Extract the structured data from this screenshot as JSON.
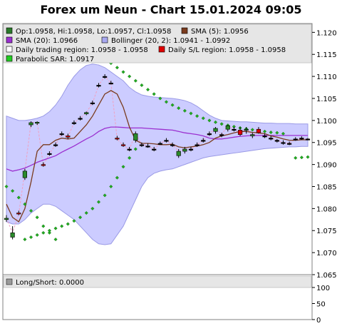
{
  "chart_data": {
    "type": "candlestick",
    "title": "Forex um Neun - Chart 15.01.2024 09:05",
    "ylim": [
      1.065,
      1.122
    ],
    "yticks": [
      "1.120",
      "1.115",
      "1.110",
      "1.105",
      "1.100",
      "1.095",
      "1.090",
      "1.085",
      "1.080",
      "1.075",
      "1.070",
      "1.065"
    ],
    "legend": [
      {
        "label": "Op:1.0958, Hi:1.0958, Lo:1.0957, Cl:1.0958",
        "color": "#2a7a2a"
      },
      {
        "label": "SMA (5): 1.0956",
        "color": "#7a3b1e"
      },
      {
        "label": "SMA (20): 1.0966",
        "color": "#9b30d0"
      },
      {
        "label": "Bollinger (20, 2): 1.0941 - 1.0992",
        "color": "#a8a8f0"
      },
      {
        "label": "Daily trading region: 1.0958 - 1.0958",
        "color": "#ffffff"
      },
      {
        "label": "Daily S/L region: 1.0958 - 1.0958",
        "color": "#e00000"
      },
      {
        "label": "Parabolic SAR: 1.0917",
        "color": "#22cc22"
      }
    ],
    "candles": [
      {
        "o": 1.0775,
        "h": 1.0785,
        "l": 1.077,
        "c": 1.0778
      },
      {
        "o": 1.0735,
        "h": 1.076,
        "l": 1.073,
        "c": 1.0745
      },
      {
        "o": 1.079,
        "h": 1.0795,
        "l": 1.0785,
        "c": 1.0788
      },
      {
        "o": 1.087,
        "h": 1.089,
        "l": 1.0865,
        "c": 1.0885
      },
      {
        "o": 1.099,
        "h": 1.0998,
        "l": 1.0985,
        "c": 1.0995
      },
      {
        "o": 1.0995,
        "h": 1.0998,
        "l": 1.099,
        "c": 1.0996
      },
      {
        "o": 1.09,
        "h": 1.0905,
        "l": 1.0895,
        "c": 1.0898
      },
      {
        "o": 1.0925,
        "h": 1.093,
        "l": 1.092,
        "c": 1.0925
      },
      {
        "o": 1.0945,
        "h": 1.095,
        "l": 1.094,
        "c": 1.0945
      },
      {
        "o": 1.097,
        "h": 1.0975,
        "l": 1.0965,
        "c": 1.097
      },
      {
        "o": 1.0965,
        "h": 1.097,
        "l": 1.0958,
        "c": 1.0962
      },
      {
        "o": 1.0995,
        "h": 1.1,
        "l": 1.099,
        "c": 1.0995
      },
      {
        "o": 1.1005,
        "h": 1.101,
        "l": 1.1,
        "c": 1.1005
      },
      {
        "o": 1.1015,
        "h": 1.102,
        "l": 1.1012,
        "c": 1.1018
      },
      {
        "o": 1.104,
        "h": 1.1045,
        "l": 1.1035,
        "c": 1.104
      },
      {
        "o": 1.108,
        "h": 1.1085,
        "l": 1.1075,
        "c": 1.108
      },
      {
        "o": 1.11,
        "h": 1.1105,
        "l": 1.1095,
        "c": 1.11
      },
      {
        "o": 1.1085,
        "h": 1.109,
        "l": 1.1082,
        "c": 1.1085
      },
      {
        "o": 1.096,
        "h": 1.0965,
        "l": 1.0955,
        "c": 1.0958
      },
      {
        "o": 1.0945,
        "h": 1.095,
        "l": 1.094,
        "c": 1.0943
      },
      {
        "o": 1.0935,
        "h": 1.094,
        "l": 1.093,
        "c": 1.0935
      },
      {
        "o": 1.0955,
        "h": 1.0975,
        "l": 1.095,
        "c": 1.097
      },
      {
        "o": 1.0945,
        "h": 1.095,
        "l": 1.094,
        "c": 1.0945
      },
      {
        "o": 1.0942,
        "h": 1.0948,
        "l": 1.0938,
        "c": 1.0942
      },
      {
        "o": 1.0935,
        "h": 1.094,
        "l": 1.093,
        "c": 1.0935
      },
      {
        "o": 1.0948,
        "h": 1.0952,
        "l": 1.0945,
        "c": 1.0948
      },
      {
        "o": 1.0955,
        "h": 1.096,
        "l": 1.095,
        "c": 1.0955
      },
      {
        "o": 1.0945,
        "h": 1.095,
        "l": 1.094,
        "c": 1.0945
      },
      {
        "o": 1.092,
        "h": 1.0935,
        "l": 1.0915,
        "c": 1.093
      },
      {
        "o": 1.093,
        "h": 1.094,
        "l": 1.0925,
        "c": 1.0935
      },
      {
        "o": 1.0935,
        "h": 1.094,
        "l": 1.093,
        "c": 1.0935
      },
      {
        "o": 1.0945,
        "h": 1.095,
        "l": 1.094,
        "c": 1.0945
      },
      {
        "o": 1.0955,
        "h": 1.096,
        "l": 1.095,
        "c": 1.0955
      },
      {
        "o": 1.097,
        "h": 1.0975,
        "l": 1.0965,
        "c": 1.097
      },
      {
        "o": 1.0975,
        "h": 1.0985,
        "l": 1.097,
        "c": 1.0982
      },
      {
        "o": 1.0968,
        "h": 1.0972,
        "l": 1.0962,
        "c": 1.0968
      },
      {
        "o": 1.098,
        "h": 1.099,
        "l": 1.0975,
        "c": 1.0988
      },
      {
        "o": 1.098,
        "h": 1.0985,
        "l": 1.0975,
        "c": 1.098
      },
      {
        "o": 1.0978,
        "h": 1.0985,
        "l": 1.0965,
        "c": 1.0968
      },
      {
        "o": 1.0978,
        "h": 1.0985,
        "l": 1.097,
        "c": 1.098
      },
      {
        "o": 1.0965,
        "h": 1.0972,
        "l": 1.096,
        "c": 1.0968
      },
      {
        "o": 1.098,
        "h": 1.0985,
        "l": 1.097,
        "c": 1.0972
      },
      {
        "o": 1.0965,
        "h": 1.097,
        "l": 1.096,
        "c": 1.0965
      },
      {
        "o": 1.096,
        "h": 1.0965,
        "l": 1.0955,
        "c": 1.096
      },
      {
        "o": 1.0955,
        "h": 1.0958,
        "l": 1.095,
        "c": 1.0955
      },
      {
        "o": 1.095,
        "h": 1.0955,
        "l": 1.0945,
        "c": 1.095
      },
      {
        "o": 1.0948,
        "h": 1.0952,
        "l": 1.0944,
        "c": 1.0948
      },
      {
        "o": 1.0958,
        "h": 1.0962,
        "l": 1.0954,
        "c": 1.0958
      },
      {
        "o": 1.096,
        "h": 1.0964,
        "l": 1.0956,
        "c": 1.096
      },
      {
        "o": 1.0958,
        "h": 1.096,
        "l": 1.0955,
        "c": 1.0958
      }
    ],
    "sma5": [
      1.081,
      1.078,
      1.077,
      1.08,
      1.086,
      1.093,
      1.0945,
      1.0945,
      1.0955,
      1.096,
      1.0958,
      1.096,
      1.0975,
      1.099,
      1.101,
      1.1035,
      1.106,
      1.1068,
      1.106,
      1.103,
      1.0985,
      1.0955,
      1.0948,
      1.0948,
      1.0947,
      1.0945,
      1.0945,
      1.0946,
      1.094,
      1.0938,
      1.094,
      1.0942,
      1.0945,
      1.095,
      1.096,
      1.0965,
      1.0968,
      1.0972,
      1.0975,
      1.0975,
      1.0973,
      1.0972,
      1.097,
      1.0965,
      1.0962,
      1.0958,
      1.0955,
      1.0955,
      1.0956,
      1.0956
    ],
    "sma20": [
      1.089,
      1.0885,
      1.0888,
      1.0892,
      1.0898,
      1.0905,
      1.091,
      1.0915,
      1.092,
      1.0928,
      1.0935,
      1.0942,
      1.095,
      1.0958,
      1.0965,
      1.0975,
      1.0982,
      1.0985,
      1.0985,
      1.0984,
      1.0983,
      1.0983,
      1.0983,
      1.0982,
      1.0981,
      1.098,
      1.0979,
      1.0978,
      1.0975,
      1.0972,
      1.097,
      1.0968,
      1.0965,
      1.096,
      1.0958,
      1.0958,
      1.096,
      1.0962,
      1.0964,
      1.0965,
      1.0966,
      1.0966,
      1.0966,
      1.0966,
      1.0966,
      1.0966,
      1.0966,
      1.0966,
      1.0966,
      1.0966
    ],
    "bb_upper": [
      1.101,
      1.1005,
      1.1,
      1.1,
      1.1002,
      1.1005,
      1.101,
      1.102,
      1.1035,
      1.1055,
      1.108,
      1.11,
      1.1115,
      1.1125,
      1.1128,
      1.1126,
      1.112,
      1.111,
      1.11,
      1.109,
      1.1075,
      1.1065,
      1.1058,
      1.1055,
      1.1053,
      1.1052,
      1.1051,
      1.105,
      1.1048,
      1.1045,
      1.104,
      1.1032,
      1.1022,
      1.1012,
      1.1005,
      1.1,
      1.0999,
      1.0998,
      1.0997,
      1.0997,
      1.0996,
      1.0995,
      1.0994,
      1.0994,
      1.0993,
      1.0993,
      1.0993,
      1.0992,
      1.0992,
      1.0992
    ],
    "bb_lower": [
      1.077,
      1.0765,
      1.0765,
      1.0775,
      1.079,
      1.08,
      1.081,
      1.081,
      1.0805,
      1.0795,
      1.0785,
      1.0775,
      1.076,
      1.0745,
      1.073,
      1.072,
      1.0718,
      1.072,
      1.074,
      1.076,
      1.079,
      1.082,
      1.085,
      1.087,
      1.088,
      1.0885,
      1.0888,
      1.089,
      1.0895,
      1.09,
      1.0905,
      1.091,
      1.0915,
      1.0918,
      1.092,
      1.0922,
      1.0924,
      1.0926,
      1.0928,
      1.093,
      1.0932,
      1.0934,
      1.0936,
      1.0937,
      1.0938,
      1.0939,
      1.094,
      1.094,
      1.0941,
      1.0941
    ],
    "sar_low": [
      1.085,
      1.084,
      1.0825,
      1.081,
      1.0795,
      1.078,
      1.076,
      1.0745,
      1.073,
      null,
      null,
      null,
      null,
      null,
      null,
      null,
      null,
      null,
      null,
      null,
      null,
      null,
      null,
      null,
      null,
      null,
      null,
      null,
      null,
      null,
      null,
      null,
      null,
      null,
      null,
      null,
      null,
      null,
      null,
      null,
      null,
      null,
      null,
      null,
      null,
      null,
      null,
      null,
      null,
      null
    ],
    "sar_low2": [
      null,
      null,
      null,
      1.073,
      1.0735,
      1.074,
      1.0745,
      1.075,
      1.0755,
      1.076,
      1.0765,
      1.0772,
      1.078,
      1.079,
      1.08,
      1.0815,
      1.083,
      1.085,
      1.087,
      1.0895,
      1.0915,
      1.0935,
      null,
      null,
      null,
      null,
      null,
      null,
      null,
      null,
      null,
      null,
      null,
      null,
      null,
      null,
      null,
      null,
      null,
      null,
      null,
      null,
      null,
      null,
      null,
      null,
      null,
      null,
      null,
      null
    ],
    "sar_high": [
      null,
      null,
      null,
      null,
      null,
      null,
      null,
      null,
      null,
      null,
      null,
      null,
      null,
      null,
      null,
      null,
      1.114,
      1.113,
      1.112,
      1.111,
      1.11,
      1.109,
      1.108,
      1.107,
      1.106,
      1.105,
      1.1042,
      1.1035,
      1.1028,
      1.1022,
      1.1016,
      1.101,
      1.1005,
      1.1,
      1.0996,
      1.0992,
      1.0989,
      1.0986,
      1.0983,
      1.0981,
      1.0979,
      1.0977,
      1.0975,
      1.0973,
      1.0972,
      1.097,
      null,
      null,
      null,
      null
    ],
    "sar_tail": [
      null,
      null,
      null,
      null,
      null,
      null,
      null,
      null,
      null,
      null,
      null,
      null,
      null,
      null,
      null,
      null,
      null,
      null,
      null,
      null,
      null,
      null,
      null,
      null,
      null,
      null,
      null,
      null,
      null,
      null,
      null,
      null,
      null,
      null,
      null,
      null,
      null,
      null,
      null,
      null,
      null,
      null,
      null,
      null,
      null,
      null,
      null,
      1.0915,
      1.0916,
      1.0917
    ],
    "sub": {
      "legend": "Long/Short: 0.0000",
      "legend_color": "#9a9a9a",
      "ylim": [
        0,
        120
      ],
      "yticks": [
        "100",
        "50",
        "0"
      ]
    }
  },
  "colors": {
    "panel_bg": "#ffffff",
    "legend_bg": "#e6e6e6",
    "band_fill": "#ccccff",
    "band_stroke": "#9a9ae6",
    "up": "#2a8a2a",
    "down": "#dd0000",
    "sma5": "#7a3b1e",
    "sma20": "#9b30d0",
    "sar": "#22aa22",
    "tail": "#f0a0c0"
  }
}
